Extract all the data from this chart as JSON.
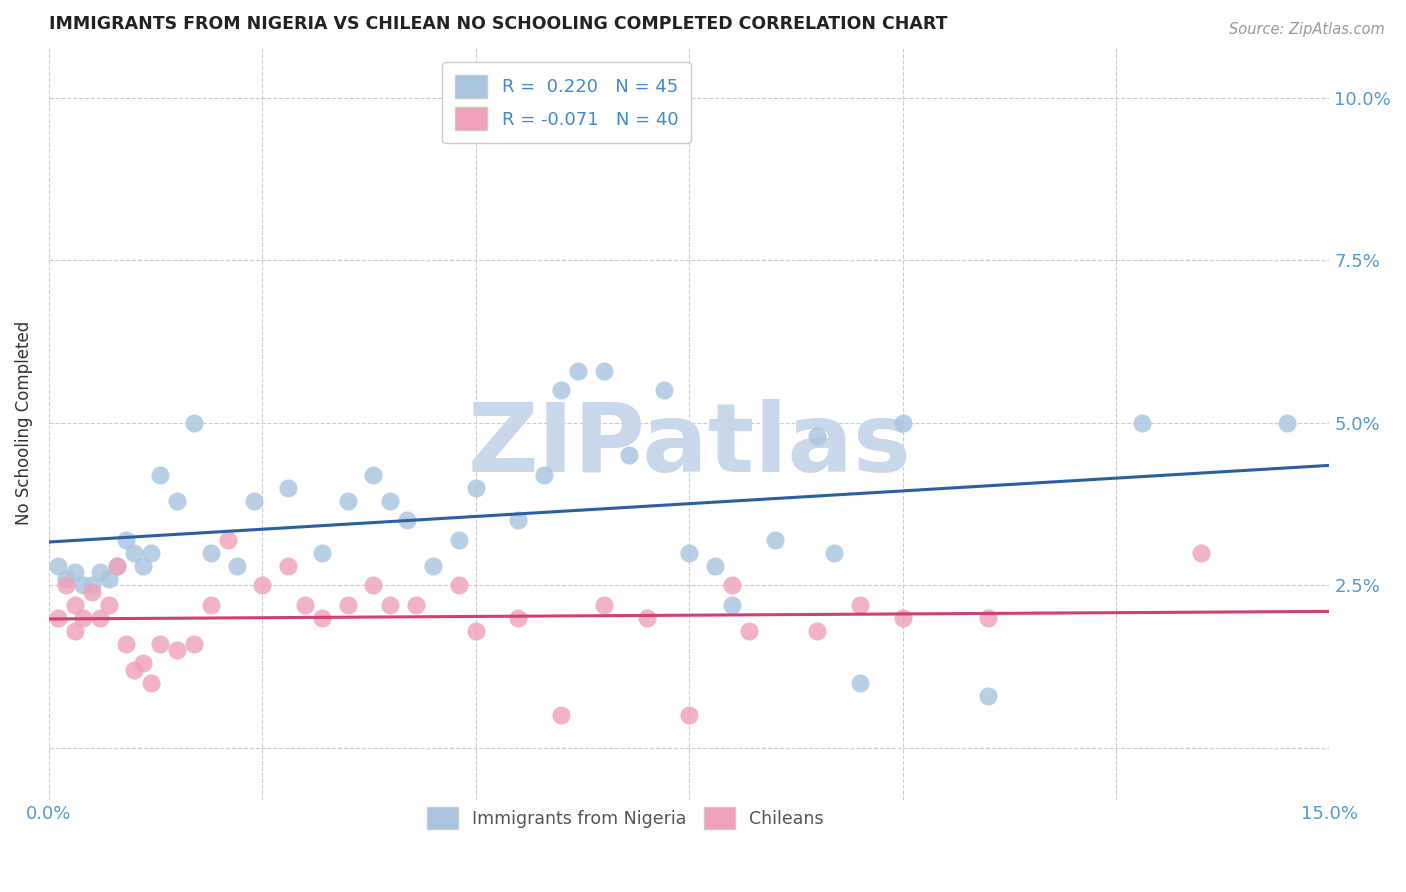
{
  "title": "IMMIGRANTS FROM NIGERIA VS CHILEAN NO SCHOOLING COMPLETED CORRELATION CHART",
  "source": "Source: ZipAtlas.com",
  "xlim": [
    0.0,
    0.15
  ],
  "ylim": [
    -0.008,
    0.108
  ],
  "ylabel": "No Schooling Completed",
  "legend_label1": "Immigrants from Nigeria",
  "legend_label2": "Chileans",
  "R1": 0.22,
  "N1": 45,
  "R2": -0.071,
  "N2": 40,
  "blue_color": "#a8c4e0",
  "blue_line_color": "#2d5fa0",
  "pink_color": "#f0a0b8",
  "pink_line_color": "#d04070",
  "ytick_positions": [
    0.0,
    0.025,
    0.05,
    0.075,
    0.1
  ],
  "ytick_labels_right": [
    "",
    "2.5%",
    "5.0%",
    "7.5%",
    "10.0%"
  ],
  "xtick_positions": [
    0.0,
    0.025,
    0.05,
    0.075,
    0.1,
    0.125,
    0.15
  ],
  "xtick_labels_bottom_left": "0.0%",
  "xtick_labels_bottom_right": "15.0%",
  "background_color": "#ffffff",
  "grid_color": "#cccccc",
  "watermark_text": "ZIPatlas",
  "watermark_color": "#c8d8ea",
  "blue_scatter_x": [
    0.001,
    0.002,
    0.003,
    0.004,
    0.005,
    0.006,
    0.007,
    0.008,
    0.009,
    0.01,
    0.011,
    0.012,
    0.013,
    0.015,
    0.017,
    0.019,
    0.022,
    0.024,
    0.028,
    0.032,
    0.035,
    0.038,
    0.04,
    0.042,
    0.045,
    0.048,
    0.05,
    0.055,
    0.058,
    0.06,
    0.062,
    0.065,
    0.068,
    0.072,
    0.075,
    0.078,
    0.08,
    0.085,
    0.09,
    0.092,
    0.095,
    0.1,
    0.11,
    0.128,
    0.145
  ],
  "blue_scatter_y": [
    0.028,
    0.026,
    0.027,
    0.025,
    0.025,
    0.027,
    0.026,
    0.028,
    0.032,
    0.03,
    0.028,
    0.03,
    0.042,
    0.038,
    0.05,
    0.03,
    0.028,
    0.038,
    0.04,
    0.03,
    0.038,
    0.042,
    0.038,
    0.035,
    0.028,
    0.032,
    0.04,
    0.035,
    0.042,
    0.055,
    0.058,
    0.058,
    0.045,
    0.055,
    0.03,
    0.028,
    0.022,
    0.032,
    0.048,
    0.03,
    0.01,
    0.05,
    0.008,
    0.05,
    0.05
  ],
  "pink_scatter_x": [
    0.001,
    0.002,
    0.003,
    0.003,
    0.004,
    0.005,
    0.006,
    0.007,
    0.008,
    0.009,
    0.01,
    0.011,
    0.012,
    0.013,
    0.015,
    0.017,
    0.019,
    0.021,
    0.025,
    0.028,
    0.03,
    0.032,
    0.035,
    0.038,
    0.04,
    0.043,
    0.048,
    0.05,
    0.055,
    0.06,
    0.065,
    0.07,
    0.075,
    0.08,
    0.082,
    0.09,
    0.095,
    0.1,
    0.11,
    0.135
  ],
  "pink_scatter_y": [
    0.02,
    0.025,
    0.022,
    0.018,
    0.02,
    0.024,
    0.02,
    0.022,
    0.028,
    0.016,
    0.012,
    0.013,
    0.01,
    0.016,
    0.015,
    0.016,
    0.022,
    0.032,
    0.025,
    0.028,
    0.022,
    0.02,
    0.022,
    0.025,
    0.022,
    0.022,
    0.025,
    0.018,
    0.02,
    0.005,
    0.022,
    0.02,
    0.005,
    0.025,
    0.018,
    0.018,
    0.022,
    0.02,
    0.02,
    0.03
  ]
}
